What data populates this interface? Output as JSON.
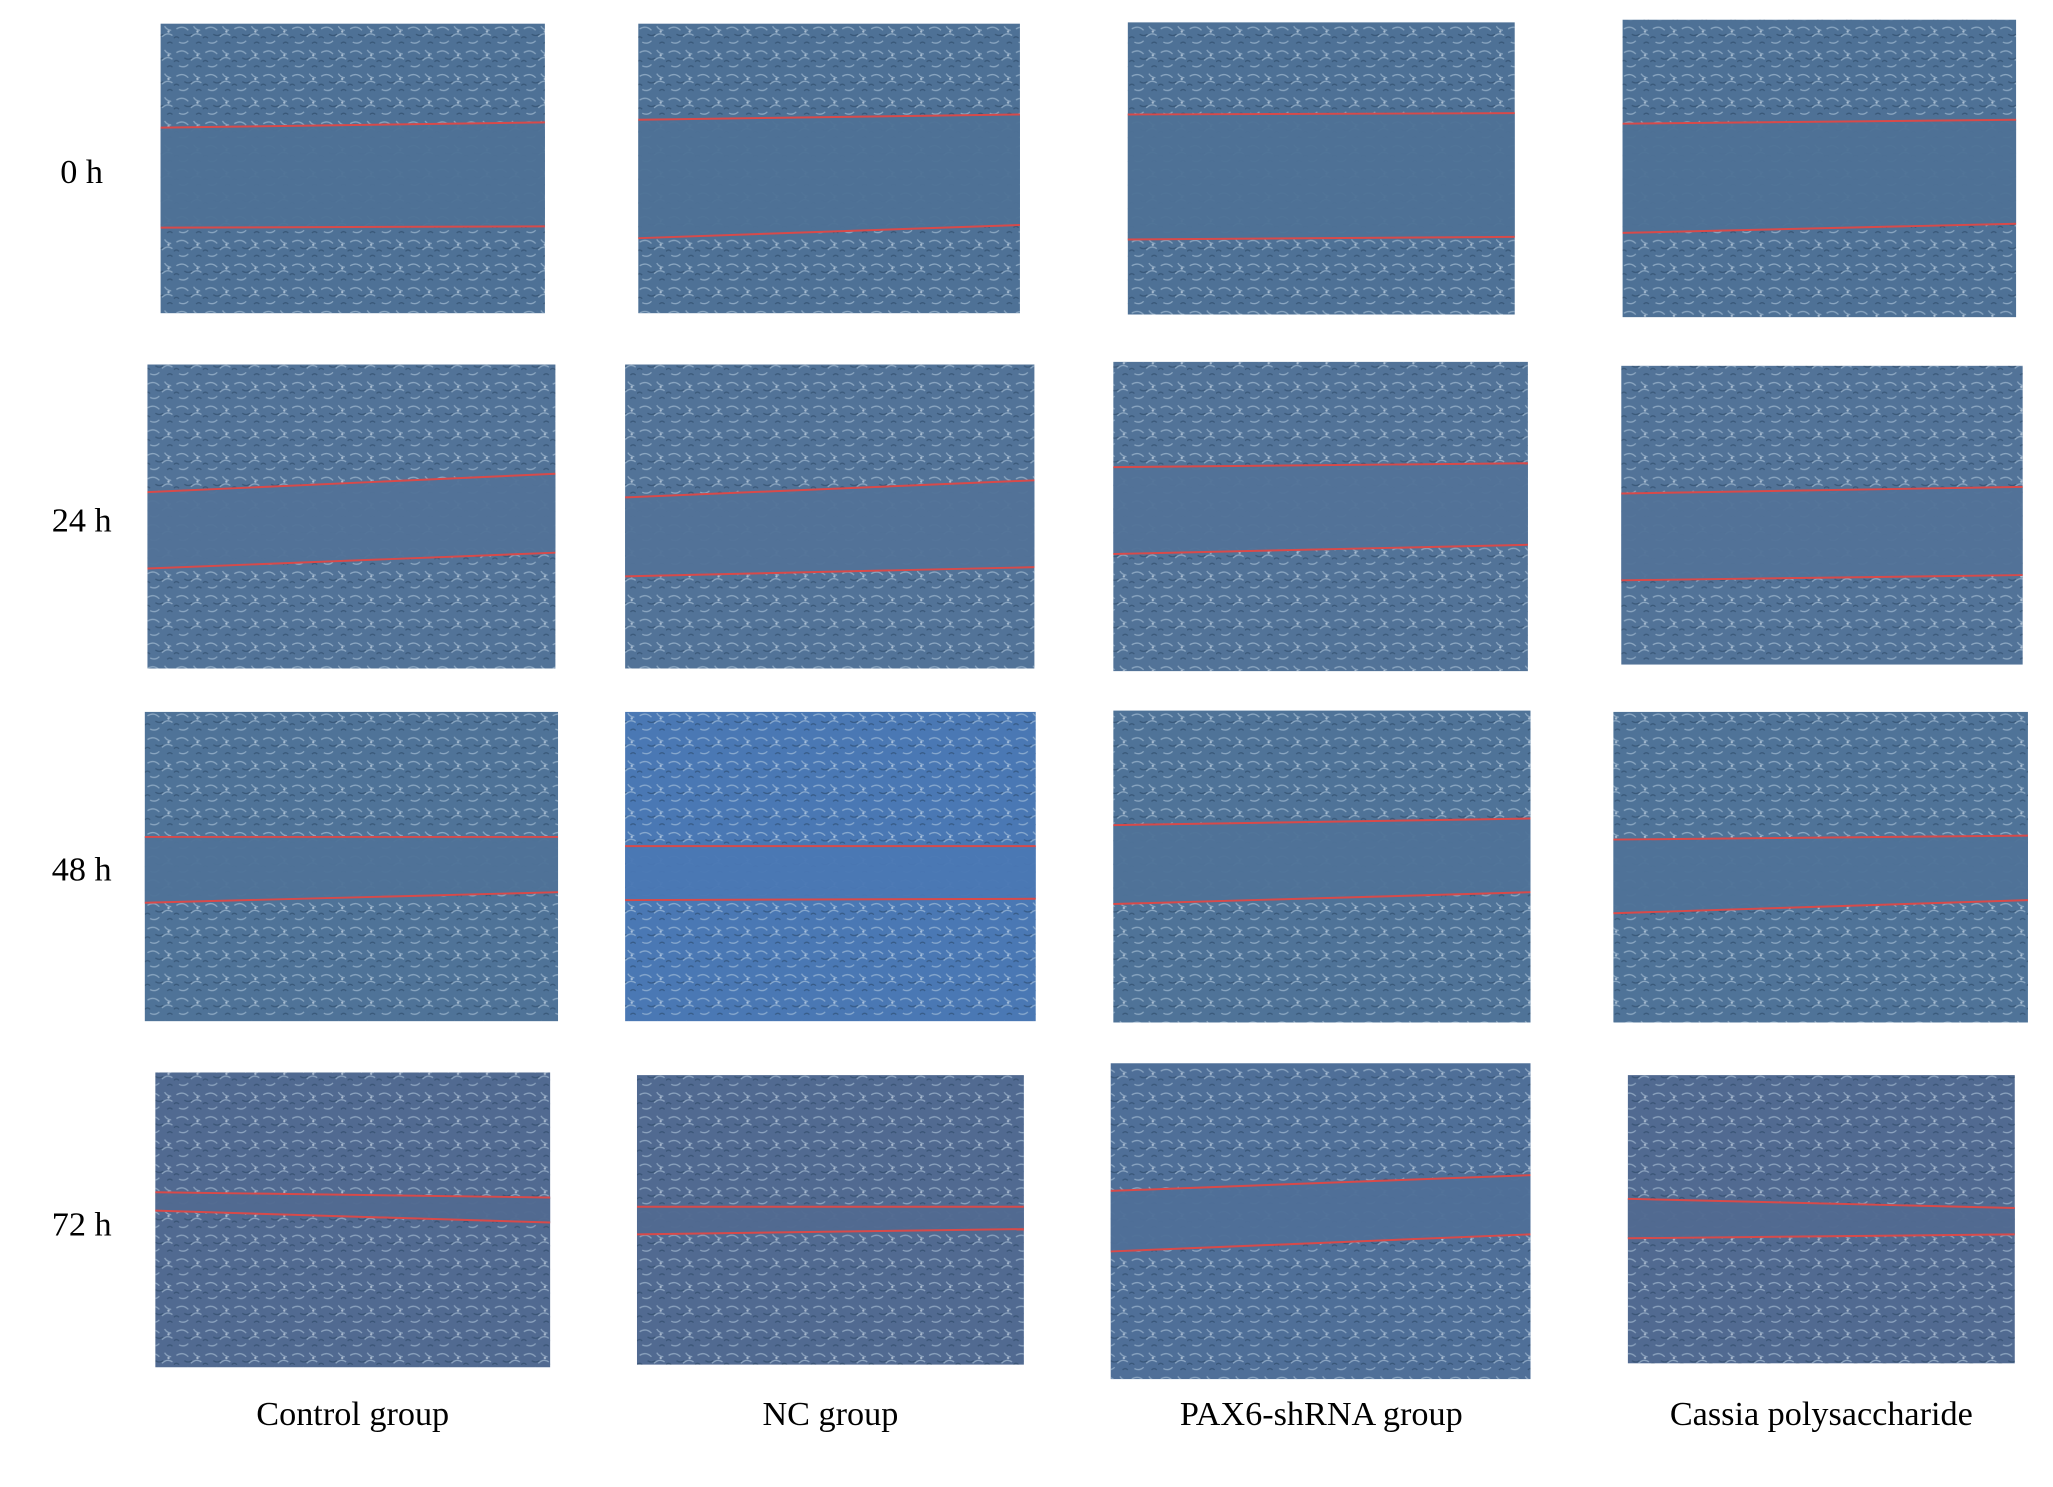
{
  "row_labels": [
    "0 h",
    "24 h",
    "48 h",
    "72 h"
  ],
  "column_labels": [
    "Control group",
    "NC group",
    "PAX6-shRNA group",
    "Cassia polysaccharide"
  ]
}
